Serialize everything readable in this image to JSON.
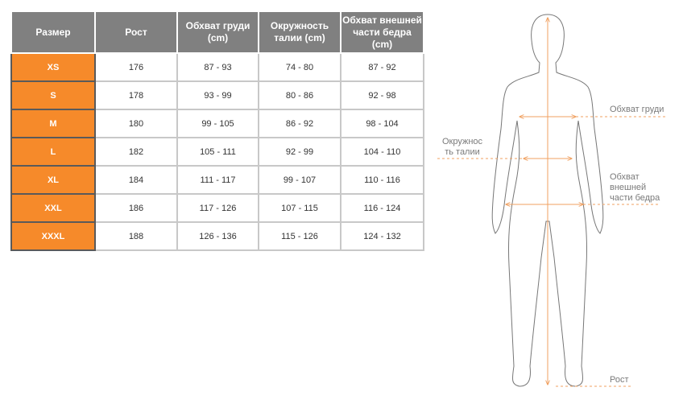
{
  "table": {
    "headers": [
      "Размер",
      "Рост",
      "Обхват груди (cm)",
      "Окружность талии (cm)",
      "Обхват внешней части бедра (cm)"
    ],
    "rows": [
      [
        "XS",
        "176",
        "87 - 93",
        "74 - 80",
        "87 - 92"
      ],
      [
        "S",
        "178",
        "93 - 99",
        "80 - 86",
        "92 - 98"
      ],
      [
        "M",
        "180",
        "99 - 105",
        "86 - 92",
        "98 - 104"
      ],
      [
        "L",
        "182",
        "105 - 111",
        "92 - 99",
        "104 - 110"
      ],
      [
        "XL",
        "184",
        "111 - 117",
        "99 - 107",
        "110 - 116"
      ],
      [
        "XXL",
        "186",
        "117 - 126",
        "107 - 115",
        "116 - 124"
      ],
      [
        "XXXL",
        "188",
        "126 - 136",
        "115 - 126",
        "124 - 132"
      ]
    ]
  },
  "figure": {
    "chest": "Обхват груди",
    "waist": "Окружнос ть талии",
    "hip": "Обхват внешней части бедра",
    "height": "Рост",
    "accent": "#f0a060"
  }
}
